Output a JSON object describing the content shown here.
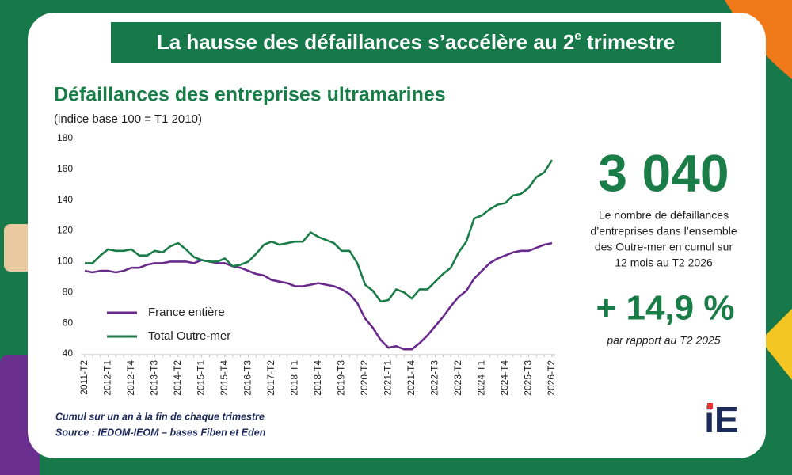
{
  "header": {
    "headline": "La hausse des défaillances s’accélère au 2",
    "headline_sup": "e",
    "headline_end": " trimestre"
  },
  "chart_data": {
    "type": "line",
    "title": "Défaillances des entreprises ultramarines",
    "subtitle": "(indice base 100 = T1 2010)",
    "categories": [
      "2011-T2",
      null,
      null,
      "2012-T1",
      null,
      null,
      "2012-T4",
      null,
      null,
      "2013-T3",
      null,
      null,
      "2014-T2",
      null,
      null,
      "2015-T1",
      null,
      null,
      "2015-T4",
      null,
      null,
      "2016-T3",
      null,
      null,
      "2017-T2",
      null,
      null,
      "2018-T1",
      null,
      null,
      "2018-T4",
      null,
      null,
      "2019-T3",
      null,
      null,
      "2020-T2",
      null,
      null,
      "2021-T1",
      null,
      null,
      "2021-T4",
      null,
      null,
      "2022-T3",
      null,
      null,
      "2023-T2",
      null,
      null,
      "2024-T1",
      null,
      null,
      "2024-T4",
      null,
      null,
      "2025-T3",
      null,
      null,
      "2026-T2"
    ],
    "series": [
      {
        "name": "France entière",
        "color": "#6a2a8c",
        "values": [
          94,
          93,
          94,
          94,
          93,
          94,
          96,
          96,
          98,
          99,
          99,
          100,
          100,
          100,
          99,
          101,
          100,
          99,
          99,
          97,
          96,
          94,
          92,
          91,
          88,
          87,
          86,
          84,
          84,
          85,
          86,
          85,
          84,
          82,
          79,
          73,
          63,
          57,
          49,
          44,
          45,
          43,
          43,
          47,
          52,
          58,
          64,
          71,
          77,
          81,
          89,
          94,
          99,
          102,
          104,
          106,
          107,
          107,
          109,
          111,
          112
        ]
      },
      {
        "name": "Total Outre-mer",
        "color": "#1a7d48",
        "values": [
          99,
          99,
          104,
          108,
          107,
          107,
          108,
          104,
          104,
          107,
          106,
          110,
          112,
          108,
          103,
          101,
          100,
          100,
          102,
          97,
          98,
          100,
          105,
          111,
          113,
          111,
          112,
          113,
          113,
          119,
          116,
          114,
          112,
          107,
          107,
          99,
          85,
          81,
          74,
          75,
          82,
          80,
          76,
          82,
          82,
          87,
          92,
          96,
          106,
          113,
          128,
          130,
          134,
          137,
          138,
          143,
          144,
          148,
          155,
          158,
          166
        ]
      }
    ],
    "ylim": [
      40,
      180
    ],
    "yticks": [
      40,
      60,
      80,
      100,
      120,
      140,
      160,
      180
    ],
    "grid": false,
    "legend": "lower left",
    "notes": [
      "Cumul sur un an à la fin de chaque trimestre",
      "Source : IEDOM-IEOM – bases Fiben et Eden"
    ]
  },
  "kpi": {
    "value": "3 040",
    "description": [
      "Le nombre de défaillances",
      "d’entreprises dans l’ensemble",
      "des Outre-mer en cumul sur",
      "12 mois au T2 2026"
    ],
    "change": "+ 14,9 %",
    "change_label": "par rapport au T2 2025"
  },
  "logo": "iE"
}
